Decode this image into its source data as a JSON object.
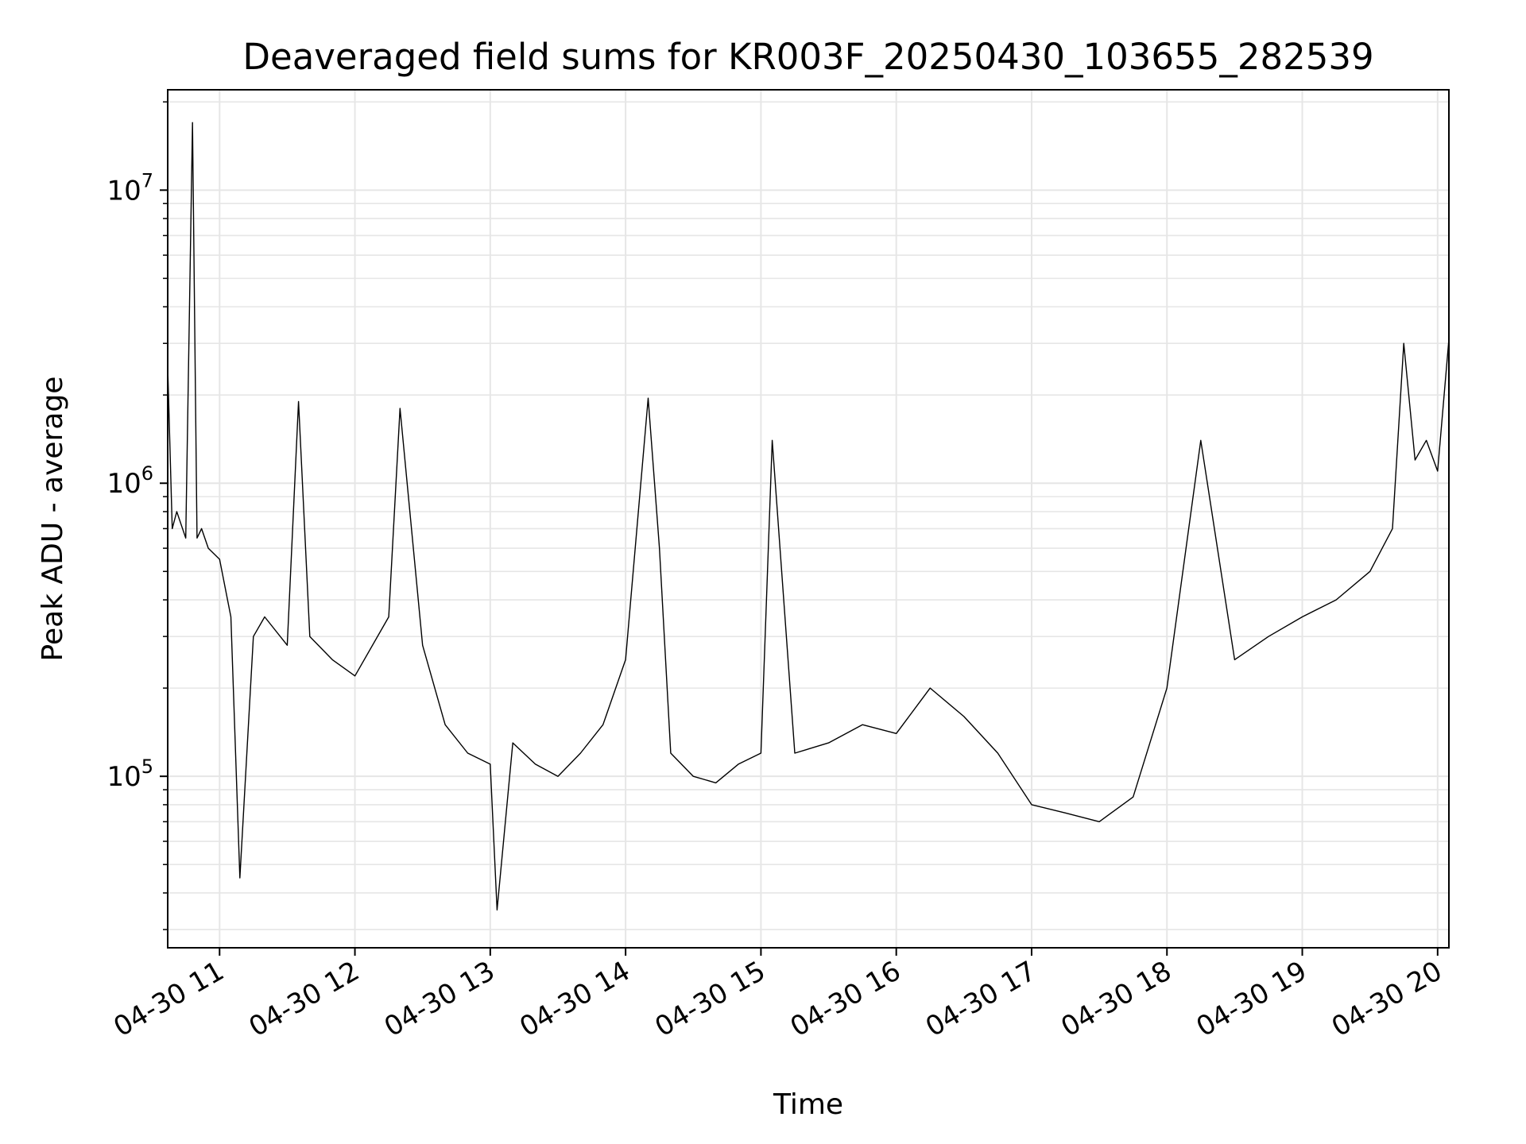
{
  "chart_data": {
    "type": "line",
    "title": "Deaveraged field sums for KR003F_20250430_103655_282539",
    "xlabel": "Time",
    "ylabel": "Peak ADU - average",
    "x_axis": {
      "kind": "time",
      "range": [
        "2025-04-30T10:37:00",
        "2025-04-30T20:05:00"
      ],
      "ticks": [
        {
          "value": "2025-04-30T11:00:00",
          "label": "04-30 11"
        },
        {
          "value": "2025-04-30T12:00:00",
          "label": "04-30 12"
        },
        {
          "value": "2025-04-30T13:00:00",
          "label": "04-30 13"
        },
        {
          "value": "2025-04-30T14:00:00",
          "label": "04-30 14"
        },
        {
          "value": "2025-04-30T15:00:00",
          "label": "04-30 15"
        },
        {
          "value": "2025-04-30T16:00:00",
          "label": "04-30 16"
        },
        {
          "value": "2025-04-30T17:00:00",
          "label": "04-30 17"
        },
        {
          "value": "2025-04-30T18:00:00",
          "label": "04-30 18"
        },
        {
          "value": "2025-04-30T19:00:00",
          "label": "04-30 19"
        },
        {
          "value": "2025-04-30T20:00:00",
          "label": "04-30 20"
        }
      ]
    },
    "y_axis": {
      "scale": "log",
      "range": [
        26000,
        22000000
      ],
      "ticks": [
        {
          "value": 100000,
          "base": "10",
          "exp": "5"
        },
        {
          "value": 1000000,
          "base": "10",
          "exp": "6"
        },
        {
          "value": 10000000,
          "base": "10",
          "exp": "7"
        }
      ]
    },
    "grid": true,
    "line_color": "#000000",
    "series": [
      {
        "x": [
          "2025-04-30T10:37:00",
          "2025-04-30T10:39:00",
          "2025-04-30T10:41:00",
          "2025-04-30T10:45:00",
          "2025-04-30T10:48:00",
          "2025-04-30T10:50:00",
          "2025-04-30T10:52:00",
          "2025-04-30T10:55:00",
          "2025-04-30T11:00:00",
          "2025-04-30T11:05:00",
          "2025-04-30T11:09:00",
          "2025-04-30T11:15:00",
          "2025-04-30T11:20:00",
          "2025-04-30T11:30:00",
          "2025-04-30T11:35:00",
          "2025-04-30T11:40:00",
          "2025-04-30T11:50:00",
          "2025-04-30T12:00:00",
          "2025-04-30T12:15:00",
          "2025-04-30T12:20:00",
          "2025-04-30T12:30:00",
          "2025-04-30T12:40:00",
          "2025-04-30T12:50:00",
          "2025-04-30T13:00:00",
          "2025-04-30T13:03:00",
          "2025-04-30T13:10:00",
          "2025-04-30T13:20:00",
          "2025-04-30T13:30:00",
          "2025-04-30T13:40:00",
          "2025-04-30T13:50:00",
          "2025-04-30T14:00:00",
          "2025-04-30T14:10:00",
          "2025-04-30T14:15:00",
          "2025-04-30T14:20:00",
          "2025-04-30T14:30:00",
          "2025-04-30T14:40:00",
          "2025-04-30T14:50:00",
          "2025-04-30T15:00:00",
          "2025-04-30T15:05:00",
          "2025-04-30T15:15:00",
          "2025-04-30T15:30:00",
          "2025-04-30T15:45:00",
          "2025-04-30T16:00:00",
          "2025-04-30T16:15:00",
          "2025-04-30T16:30:00",
          "2025-04-30T16:45:00",
          "2025-04-30T17:00:00",
          "2025-04-30T17:15:00",
          "2025-04-30T17:30:00",
          "2025-04-30T17:45:00",
          "2025-04-30T18:00:00",
          "2025-04-30T18:15:00",
          "2025-04-30T18:30:00",
          "2025-04-30T18:45:00",
          "2025-04-30T19:00:00",
          "2025-04-30T19:15:00",
          "2025-04-30T19:30:00",
          "2025-04-30T19:40:00",
          "2025-04-30T19:45:00",
          "2025-04-30T19:50:00",
          "2025-04-30T19:55:00",
          "2025-04-30T20:00:00",
          "2025-04-30T20:05:00"
        ],
        "y": [
          2500000,
          700000,
          800000,
          650000,
          17000000,
          650000,
          700000,
          600000,
          550000,
          350000,
          45000,
          300000,
          350000,
          280000,
          1900000,
          300000,
          250000,
          220000,
          350000,
          1800000,
          280000,
          150000,
          120000,
          110000,
          35000,
          130000,
          110000,
          100000,
          120000,
          150000,
          250000,
          1950000,
          600000,
          120000,
          100000,
          95000,
          110000,
          120000,
          1400000,
          120000,
          130000,
          150000,
          140000,
          200000,
          160000,
          120000,
          80000,
          75000,
          70000,
          85000,
          200000,
          1400000,
          250000,
          300000,
          350000,
          400000,
          500000,
          700000,
          3000000,
          1200000,
          1400000,
          1100000,
          3100000
        ]
      }
    ]
  }
}
